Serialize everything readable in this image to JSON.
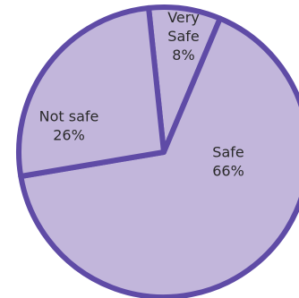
{
  "chart_data": {
    "type": "pie",
    "slices": [
      {
        "label_lines": [
          "Very",
          "Safe",
          "8%"
        ],
        "label": "Very Safe",
        "value": 8
      },
      {
        "label_lines": [
          "Safe",
          "66%"
        ],
        "label": "Safe",
        "value": 66
      },
      {
        "label_lines": [
          "Not safe",
          "26%"
        ],
        "label": "Not safe",
        "value": 26
      }
    ],
    "title": "",
    "colors": {
      "fill": "#c2b6db",
      "stroke": "#5f4ba6"
    }
  }
}
